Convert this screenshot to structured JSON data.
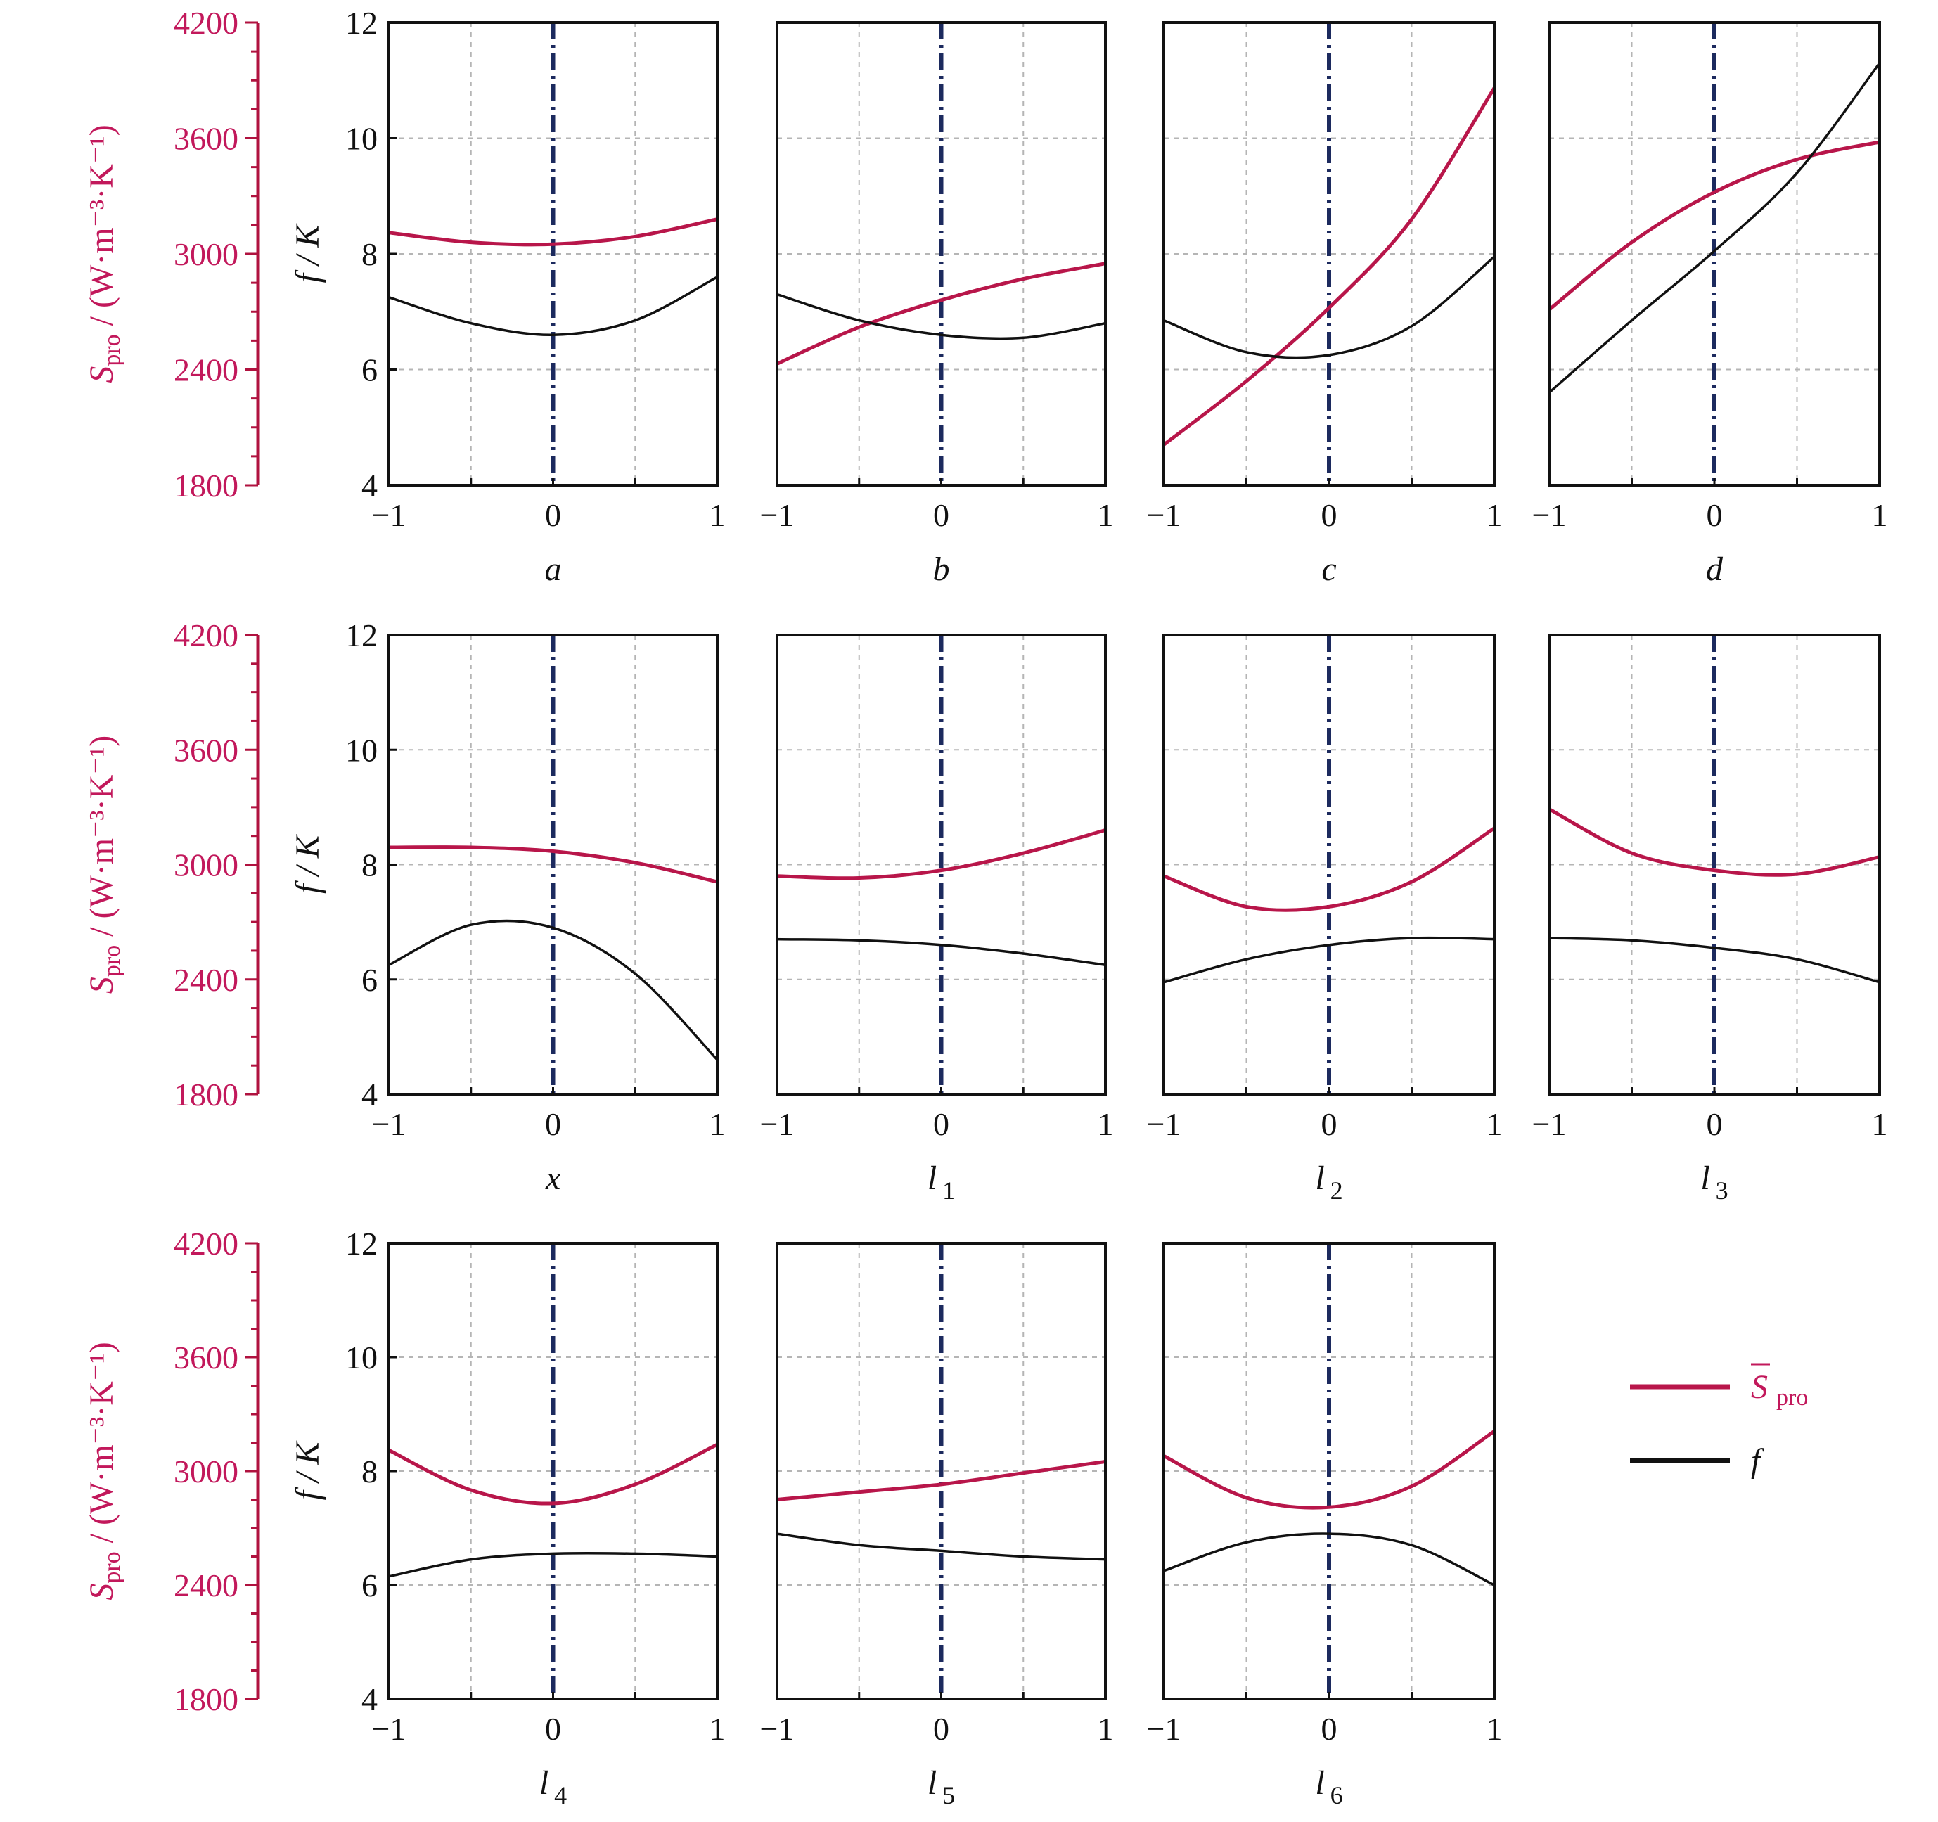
{
  "colors": {
    "spro": "#b8164a",
    "f": "#111111",
    "center_line": "#1c2a5e",
    "grid": "#b5b5b5",
    "left_axis": "#c2185b",
    "left_axis_bar": "#b0123f"
  },
  "left_axis": {
    "label_symbol": "S",
    "label_sub": "pro",
    "label_units": " / (W·m⁻³·K⁻¹)",
    "ticks": [
      "1800",
      "2400",
      "3000",
      "3600",
      "4200"
    ],
    "ylim": [
      1800,
      4200
    ]
  },
  "right_axis": {
    "label": "f / K",
    "ticks": [
      "4",
      "6",
      "8",
      "10",
      "12"
    ],
    "ylim": [
      4,
      12
    ]
  },
  "x_ticks": [
    "−1",
    "0",
    "1"
  ],
  "legend": {
    "spro_symbol": "S",
    "spro_sub": "pro",
    "f_label": "f"
  },
  "chart_data": [
    {
      "type": "line",
      "xlabel": "a",
      "xlabel_sub": "",
      "x": [
        -1,
        -0.5,
        0,
        0.5,
        1
      ],
      "xlim": [
        -1,
        1
      ],
      "ylim": [
        4,
        12
      ],
      "axes": [
        "f / K",
        "S_pro / (W·m⁻³·K⁻¹)"
      ],
      "series": [
        {
          "name": "S_pro",
          "units": "W·m⁻³·K⁻¹",
          "values": [
            3110,
            3060,
            3050,
            3090,
            3180
          ]
        },
        {
          "name": "f",
          "units": "K",
          "values": [
            7.25,
            6.8,
            6.6,
            6.85,
            7.6
          ]
        }
      ]
    },
    {
      "type": "line",
      "xlabel": "b",
      "xlabel_sub": "",
      "x": [
        -1,
        -0.5,
        0,
        0.5,
        1
      ],
      "xlim": [
        -1,
        1
      ],
      "ylim": [
        4,
        12
      ],
      "series": [
        {
          "name": "S_pro",
          "units": "W·m⁻³·K⁻¹",
          "values": [
            2430,
            2620,
            2760,
            2870,
            2950
          ]
        },
        {
          "name": "f",
          "units": "K",
          "values": [
            7.3,
            6.85,
            6.6,
            6.55,
            6.8
          ]
        }
      ]
    },
    {
      "type": "line",
      "xlabel": "c",
      "xlabel_sub": "",
      "x": [
        -1,
        -0.5,
        0,
        0.5,
        1
      ],
      "xlim": [
        -1,
        1
      ],
      "ylim": [
        4,
        12
      ],
      "series": [
        {
          "name": "S_pro",
          "units": "W·m⁻³·K⁻¹",
          "values": [
            2010,
            2340,
            2720,
            3180,
            3860
          ]
        },
        {
          "name": "f",
          "units": "K",
          "values": [
            6.85,
            6.3,
            6.25,
            6.75,
            7.95
          ]
        }
      ]
    },
    {
      "type": "line",
      "xlabel": "d",
      "xlabel_sub": "",
      "x": [
        -1,
        -0.5,
        0,
        0.5,
        1
      ],
      "xlim": [
        -1,
        1
      ],
      "ylim": [
        4,
        12
      ],
      "series": [
        {
          "name": "S_pro",
          "units": "W·m⁻³·K⁻¹",
          "values": [
            2710,
            3060,
            3320,
            3490,
            3580
          ]
        },
        {
          "name": "f",
          "units": "K",
          "values": [
            5.6,
            6.85,
            8.05,
            9.4,
            11.3
          ]
        }
      ]
    },
    {
      "type": "line",
      "xlabel": "x",
      "xlabel_sub": "",
      "x": [
        -1,
        -0.5,
        0,
        0.5,
        1
      ],
      "xlim": [
        -1,
        1
      ],
      "ylim": [
        4,
        12
      ],
      "series": [
        {
          "name": "S_pro",
          "units": "W·m⁻³·K⁻¹",
          "values": [
            3090,
            3090,
            3070,
            3010,
            2910
          ]
        },
        {
          "name": "f",
          "units": "K",
          "values": [
            6.25,
            6.95,
            6.9,
            6.1,
            4.6
          ]
        }
      ]
    },
    {
      "type": "line",
      "xlabel": "l",
      "xlabel_sub": "1",
      "x": [
        -1,
        -0.5,
        0,
        0.5,
        1
      ],
      "xlim": [
        -1,
        1
      ],
      "ylim": [
        4,
        12
      ],
      "series": [
        {
          "name": "S_pro",
          "units": "W·m⁻³·K⁻¹",
          "values": [
            2940,
            2930,
            2970,
            3060,
            3180
          ]
        },
        {
          "name": "f",
          "units": "K",
          "values": [
            6.7,
            6.68,
            6.6,
            6.45,
            6.25
          ]
        }
      ]
    },
    {
      "type": "line",
      "xlabel": "l",
      "xlabel_sub": "2",
      "x": [
        -1,
        -0.5,
        0,
        0.5,
        1
      ],
      "xlim": [
        -1,
        1
      ],
      "ylim": [
        4,
        12
      ],
      "series": [
        {
          "name": "S_pro",
          "units": "W·m⁻³·K⁻¹",
          "values": [
            2940,
            2780,
            2780,
            2910,
            3190
          ]
        },
        {
          "name": "f",
          "units": "K",
          "values": [
            5.95,
            6.35,
            6.6,
            6.72,
            6.7
          ]
        }
      ]
    },
    {
      "type": "line",
      "xlabel": "l",
      "xlabel_sub": "3",
      "x": [
        -1,
        -0.5,
        0,
        0.5,
        1
      ],
      "xlim": [
        -1,
        1
      ],
      "ylim": [
        4,
        12
      ],
      "series": [
        {
          "name": "S_pro",
          "units": "W·m⁻³·K⁻¹",
          "values": [
            3290,
            3060,
            2970,
            2950,
            3040
          ]
        },
        {
          "name": "f",
          "units": "K",
          "values": [
            6.72,
            6.68,
            6.55,
            6.35,
            5.95
          ]
        }
      ]
    },
    {
      "type": "line",
      "xlabel": "l",
      "xlabel_sub": "4",
      "x": [
        -1,
        -0.5,
        0,
        0.5,
        1
      ],
      "xlim": [
        -1,
        1
      ],
      "ylim": [
        4,
        12
      ],
      "series": [
        {
          "name": "S_pro",
          "units": "W·m⁻³·K⁻¹",
          "values": [
            3110,
            2900,
            2830,
            2930,
            3140
          ]
        },
        {
          "name": "f",
          "units": "K",
          "values": [
            6.15,
            6.45,
            6.55,
            6.55,
            6.5
          ]
        }
      ]
    },
    {
      "type": "line",
      "xlabel": "l",
      "xlabel_sub": "5",
      "x": [
        -1,
        -0.5,
        0,
        0.5,
        1
      ],
      "xlim": [
        -1,
        1
      ],
      "ylim": [
        4,
        12
      ],
      "series": [
        {
          "name": "S_pro",
          "units": "W·m⁻³·K⁻¹",
          "values": [
            2850,
            2890,
            2930,
            2990,
            3050
          ]
        },
        {
          "name": "f",
          "units": "K",
          "values": [
            6.9,
            6.7,
            6.6,
            6.5,
            6.45
          ]
        }
      ]
    },
    {
      "type": "line",
      "xlabel": "l",
      "xlabel_sub": "6",
      "x": [
        -1,
        -0.5,
        0,
        0.5,
        1
      ],
      "xlim": [
        -1,
        1
      ],
      "ylim": [
        4,
        12
      ],
      "series": [
        {
          "name": "S_pro",
          "units": "W·m⁻³·K⁻¹",
          "values": [
            3080,
            2860,
            2810,
            2920,
            3210
          ]
        },
        {
          "name": "f",
          "units": "K",
          "values": [
            6.25,
            6.75,
            6.9,
            6.7,
            6.0
          ]
        }
      ]
    }
  ]
}
